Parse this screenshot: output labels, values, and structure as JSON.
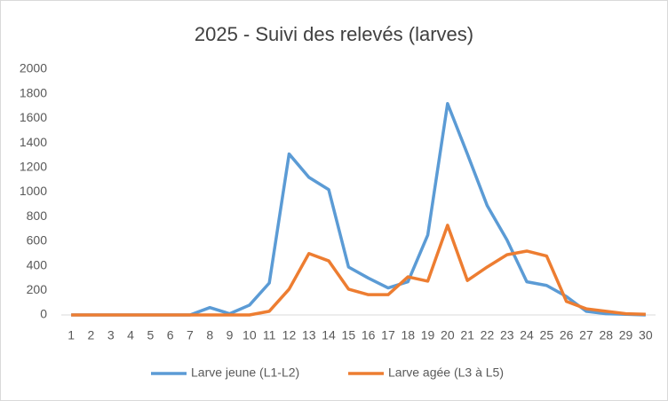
{
  "chart_data": {
    "type": "line",
    "title": "2025 - Suivi des relevés (larves)",
    "categories": [
      "1",
      "2",
      "3",
      "4",
      "5",
      "6",
      "7",
      "8",
      "9",
      "10",
      "11",
      "12",
      "13",
      "14",
      "15",
      "16",
      "17",
      "18",
      "19",
      "20",
      "21",
      "22",
      "23",
      "24",
      "25",
      "26",
      "27",
      "28",
      "29",
      "30"
    ],
    "series": [
      {
        "name": "Larve jeune (L1-L2)",
        "color": "#5b9bd5",
        "values": [
          0,
          0,
          0,
          0,
          0,
          0,
          0,
          60,
          10,
          80,
          260,
          1310,
          1120,
          1020,
          390,
          300,
          220,
          270,
          650,
          1720,
          1310,
          890,
          610,
          270,
          240,
          150,
          30,
          10,
          5,
          0
        ]
      },
      {
        "name": "Larve agée (L3 à L5)",
        "color": "#ed7d31",
        "values": [
          0,
          0,
          0,
          0,
          0,
          0,
          0,
          0,
          0,
          0,
          30,
          210,
          500,
          440,
          210,
          165,
          165,
          310,
          275,
          730,
          280,
          390,
          490,
          520,
          480,
          110,
          50,
          30,
          10,
          5
        ]
      }
    ],
    "ylim": [
      0,
      2000
    ],
    "yticks": [
      0,
      200,
      400,
      600,
      800,
      1000,
      1200,
      1400,
      1600,
      1800,
      2000
    ],
    "grid": false,
    "legend": "bottom"
  }
}
